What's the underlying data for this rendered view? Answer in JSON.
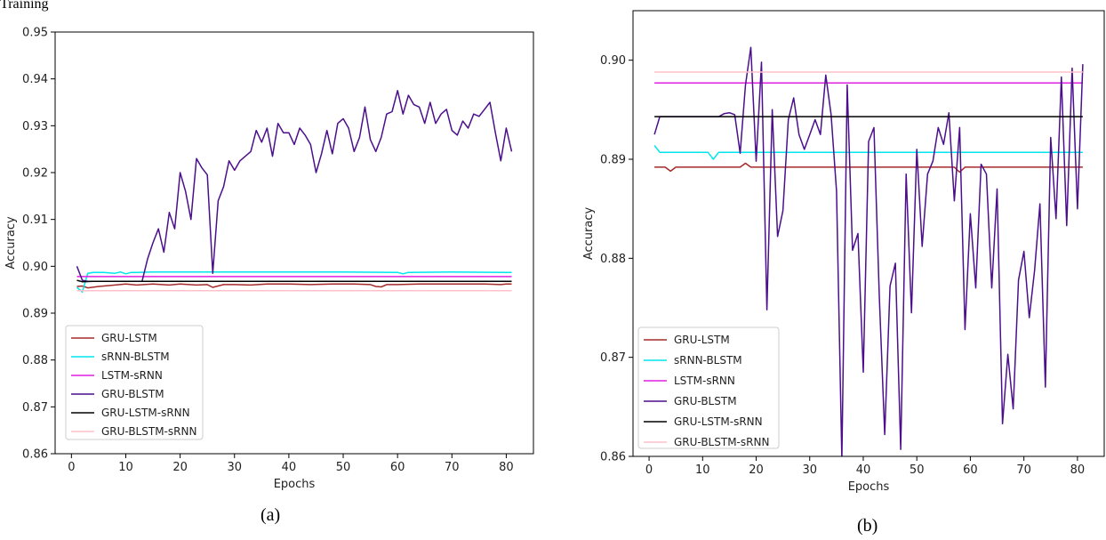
{
  "page": {
    "top_caption": "Training",
    "caption_a": "(a)",
    "caption_b": "(b)"
  },
  "chart_data": [
    {
      "type": "line",
      "id": "a",
      "xlabel": "Epochs",
      "ylabel": "Accuracy",
      "xlim": [
        -3,
        85
      ],
      "ylim": [
        0.86,
        0.95
      ],
      "xticks": [
        0,
        10,
        20,
        30,
        40,
        50,
        60,
        70,
        80
      ],
      "yticks": [
        0.86,
        0.87,
        0.88,
        0.89,
        0.9,
        0.91,
        0.92,
        0.93,
        0.94,
        0.95
      ],
      "legend_position": "bottom-left",
      "grid": false,
      "series": [
        {
          "name": "GRU-LSTM",
          "color": "#a52a2a",
          "x": [
            1,
            2,
            3,
            5,
            8,
            10,
            12,
            15,
            18,
            20,
            23,
            25,
            26,
            28,
            30,
            33,
            36,
            40,
            44,
            48,
            52,
            55,
            56,
            57,
            58,
            60,
            64,
            68,
            72,
            76,
            79,
            80,
            81
          ],
          "y": [
            0.8957,
            0.8958,
            0.8954,
            0.8957,
            0.896,
            0.8962,
            0.896,
            0.8962,
            0.896,
            0.8962,
            0.896,
            0.8961,
            0.8955,
            0.8961,
            0.8961,
            0.896,
            0.8962,
            0.8962,
            0.8961,
            0.8962,
            0.8962,
            0.8961,
            0.8957,
            0.8956,
            0.8961,
            0.8961,
            0.8962,
            0.8962,
            0.8962,
            0.8962,
            0.8961,
            0.8962,
            0.8962
          ]
        },
        {
          "name": "sRNN-BLSTM",
          "color": "#00e5ee",
          "x": [
            1,
            2,
            3,
            4,
            6,
            8,
            9,
            10,
            11,
            12,
            15,
            20,
            30,
            40,
            50,
            60,
            61,
            62,
            70,
            80,
            81
          ],
          "y": [
            0.8955,
            0.8945,
            0.8985,
            0.8987,
            0.8987,
            0.8985,
            0.8988,
            0.8984,
            0.8987,
            0.8987,
            0.8988,
            0.8988,
            0.8988,
            0.8988,
            0.8988,
            0.8987,
            0.8984,
            0.8987,
            0.8988,
            0.8987,
            0.8987
          ]
        },
        {
          "name": "LSTM-sRNN",
          "color": "#e020e0",
          "x": [
            1,
            81
          ],
          "y": [
            0.8978,
            0.8978
          ]
        },
        {
          "name": "GRU-BLSTM",
          "color": "#4b0f8c",
          "x": [
            1,
            2,
            3,
            4,
            5,
            6,
            7,
            8,
            9,
            10,
            11,
            12,
            13,
            14,
            15,
            16,
            17,
            18,
            19,
            20,
            21,
            22,
            23,
            24,
            25,
            26,
            27,
            28,
            29,
            30,
            31,
            32,
            33,
            34,
            35,
            36,
            37,
            38,
            39,
            40,
            41,
            42,
            43,
            44,
            45,
            46,
            47,
            48,
            49,
            50,
            51,
            52,
            53,
            54,
            55,
            56,
            57,
            58,
            59,
            60,
            61,
            62,
            63,
            64,
            65,
            66,
            67,
            68,
            69,
            70,
            71,
            72,
            73,
            74,
            75,
            76,
            77,
            78,
            79,
            80,
            81
          ],
          "y": [
            0.9,
            0.897,
            0.8968,
            0.8968,
            0.8968,
            0.8968,
            0.8968,
            0.8968,
            0.8968,
            0.8968,
            0.8968,
            0.8968,
            0.8968,
            0.9015,
            0.905,
            0.908,
            0.903,
            0.9115,
            0.908,
            0.92,
            0.916,
            0.91,
            0.923,
            0.921,
            0.9195,
            0.8985,
            0.914,
            0.917,
            0.9225,
            0.9205,
            0.9225,
            0.9235,
            0.9245,
            0.929,
            0.9265,
            0.9295,
            0.9235,
            0.9305,
            0.9285,
            0.9285,
            0.926,
            0.9295,
            0.928,
            0.926,
            0.92,
            0.924,
            0.929,
            0.924,
            0.9305,
            0.9315,
            0.9295,
            0.9245,
            0.9275,
            0.934,
            0.927,
            0.9245,
            0.9275,
            0.9325,
            0.933,
            0.9375,
            0.9325,
            0.9365,
            0.9345,
            0.934,
            0.9305,
            0.935,
            0.9305,
            0.9325,
            0.9335,
            0.929,
            0.928,
            0.931,
            0.9295,
            0.9325,
            0.932,
            0.9335,
            0.935,
            0.9285,
            0.9225,
            0.9295,
            0.9245
          ]
        },
        {
          "name": "GRU-LSTM-sRNN",
          "color": "#000000",
          "x": [
            1,
            2,
            4,
            81
          ],
          "y": [
            0.897,
            0.8967,
            0.8968,
            0.8968
          ]
        },
        {
          "name": "GRU-BLSTM-sRNN",
          "color": "#ffc0cb",
          "x": [
            1,
            81
          ],
          "y": [
            0.8948,
            0.8948
          ]
        }
      ]
    },
    {
      "type": "line",
      "id": "b",
      "xlabel": "Epochs",
      "ylabel": "Accuracy",
      "xlim": [
        -3,
        85
      ],
      "ylim": [
        0.86,
        0.905
      ],
      "xticks": [
        0,
        10,
        20,
        30,
        40,
        50,
        60,
        70,
        80
      ],
      "yticks": [
        0.86,
        0.87,
        0.88,
        0.89,
        0.9
      ],
      "legend_position": "bottom-left",
      "grid": false,
      "series": [
        {
          "name": "GRU-LSTM",
          "color": "#a52a2a",
          "x": [
            1,
            3,
            4,
            5,
            6,
            10,
            15,
            17,
            18,
            19,
            20,
            30,
            40,
            50,
            55,
            57,
            58,
            59,
            60,
            61,
            70,
            80,
            81
          ],
          "y": [
            0.8892,
            0.8892,
            0.8888,
            0.8892,
            0.8892,
            0.8892,
            0.8892,
            0.8892,
            0.8896,
            0.8892,
            0.8892,
            0.8892,
            0.8892,
            0.8892,
            0.8892,
            0.8892,
            0.8887,
            0.8892,
            0.8892,
            0.8892,
            0.8892,
            0.8892,
            0.8892
          ]
        },
        {
          "name": "sRNN-BLSTM",
          "color": "#00e5ee",
          "x": [
            1,
            2,
            5,
            10,
            11,
            12,
            13,
            20,
            40,
            60,
            80,
            81
          ],
          "y": [
            0.8914,
            0.8907,
            0.8907,
            0.8907,
            0.8907,
            0.89,
            0.8907,
            0.8907,
            0.8907,
            0.8907,
            0.8907,
            0.8907
          ]
        },
        {
          "name": "LSTM-sRNN",
          "color": "#e020e0",
          "x": [
            1,
            81
          ],
          "y": [
            0.8977,
            0.8977
          ]
        },
        {
          "name": "GRU-BLSTM",
          "color": "#4b0f8c",
          "x": [
            1,
            2,
            3,
            4,
            5,
            6,
            7,
            8,
            9,
            10,
            11,
            12,
            13,
            14,
            15,
            16,
            17,
            18,
            19,
            20,
            21,
            22,
            23,
            24,
            25,
            26,
            27,
            28,
            29,
            30,
            31,
            32,
            33,
            34,
            35,
            36,
            37,
            38,
            39,
            40,
            41,
            42,
            43,
            44,
            45,
            46,
            47,
            48,
            49,
            50,
            51,
            52,
            53,
            54,
            55,
            56,
            57,
            58,
            59,
            60,
            61,
            62,
            63,
            64,
            65,
            66,
            67,
            68,
            69,
            70,
            71,
            72,
            73,
            74,
            75,
            76,
            77,
            78,
            79,
            80,
            81
          ],
          "y": [
            0.8925,
            0.8943,
            0.8943,
            0.8943,
            0.8943,
            0.8943,
            0.8943,
            0.8943,
            0.8943,
            0.8943,
            0.8943,
            0.8943,
            0.8943,
            0.8946,
            0.8947,
            0.8945,
            0.8906,
            0.8975,
            0.9013,
            0.8898,
            0.8998,
            0.8748,
            0.895,
            0.8822,
            0.8848,
            0.894,
            0.8962,
            0.8925,
            0.891,
            0.8925,
            0.894,
            0.8925,
            0.8985,
            0.8945,
            0.8868,
            0.8597,
            0.8975,
            0.8808,
            0.8825,
            0.8685,
            0.8918,
            0.8932,
            0.8762,
            0.8622,
            0.8772,
            0.8795,
            0.8607,
            0.8885,
            0.8745,
            0.891,
            0.8812,
            0.8885,
            0.8898,
            0.8932,
            0.8915,
            0.8947,
            0.8858,
            0.8932,
            0.8728,
            0.8845,
            0.877,
            0.8895,
            0.8885,
            0.877,
            0.887,
            0.8633,
            0.8703,
            0.8648,
            0.8778,
            0.8807,
            0.874,
            0.8788,
            0.8855,
            0.867,
            0.8922,
            0.884,
            0.8983,
            0.8833,
            0.8992,
            0.885,
            0.8996
          ]
        },
        {
          "name": "GRU-LSTM-sRNN",
          "color": "#000000",
          "x": [
            1,
            81
          ],
          "y": [
            0.8943,
            0.8943
          ]
        },
        {
          "name": "GRU-BLSTM-sRNN",
          "color": "#ffc0cb",
          "x": [
            1,
            81
          ],
          "y": [
            0.8988,
            0.8988
          ]
        }
      ]
    }
  ]
}
